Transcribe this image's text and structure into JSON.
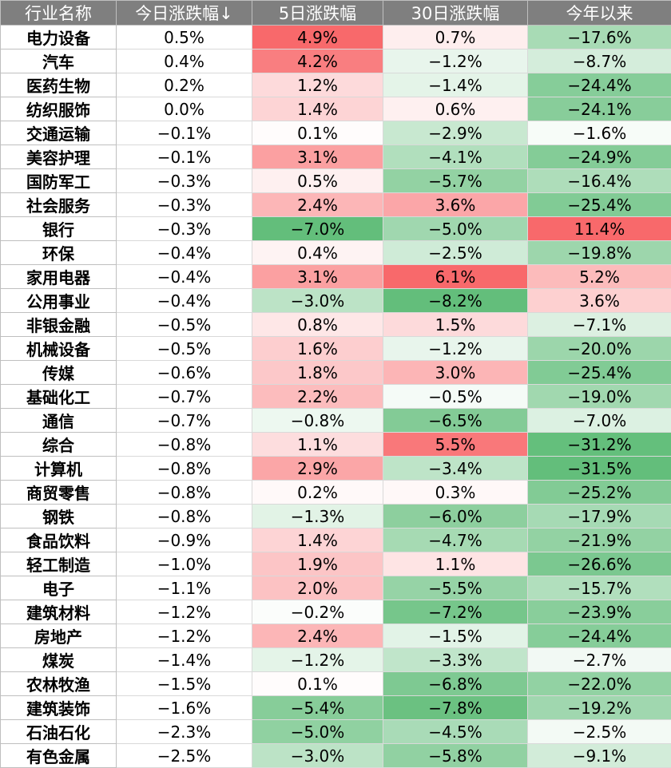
{
  "chart_data": {
    "type": "table",
    "columns": [
      "行业名称",
      "今日涨跌幅↓",
      "5日涨跌幅",
      "30日涨跌幅",
      "今年以来"
    ],
    "rows": [
      [
        "电力设备",
        "0.5%",
        "4.9%",
        "0.7%",
        "−17.6%"
      ],
      [
        "汽车",
        "0.4%",
        "4.2%",
        "−1.2%",
        "−8.7%"
      ],
      [
        "医药生物",
        "0.2%",
        "1.2%",
        "−1.4%",
        "−24.4%"
      ],
      [
        "纺织服饰",
        "0.0%",
        "1.4%",
        "0.6%",
        "−24.1%"
      ],
      [
        "交通运输",
        "−0.1%",
        "0.1%",
        "−2.9%",
        "−1.6%"
      ],
      [
        "美容护理",
        "−0.1%",
        "3.1%",
        "−4.1%",
        "−24.9%"
      ],
      [
        "国防军工",
        "−0.3%",
        "0.5%",
        "−5.7%",
        "−16.4%"
      ],
      [
        "社会服务",
        "−0.3%",
        "2.4%",
        "3.6%",
        "−25.4%"
      ],
      [
        "银行",
        "−0.3%",
        "−7.0%",
        "−5.0%",
        "11.4%"
      ],
      [
        "环保",
        "−0.4%",
        "0.4%",
        "−2.5%",
        "−19.8%"
      ],
      [
        "家用电器",
        "−0.4%",
        "3.1%",
        "6.1%",
        "5.2%"
      ],
      [
        "公用事业",
        "−0.4%",
        "−3.0%",
        "−8.2%",
        "3.6%"
      ],
      [
        "非银金融",
        "−0.5%",
        "0.8%",
        "1.5%",
        "−7.1%"
      ],
      [
        "机械设备",
        "−0.5%",
        "1.6%",
        "−1.2%",
        "−20.0%"
      ],
      [
        "传媒",
        "−0.6%",
        "1.8%",
        "3.0%",
        "−25.4%"
      ],
      [
        "基础化工",
        "−0.7%",
        "2.2%",
        "−0.5%",
        "−19.0%"
      ],
      [
        "通信",
        "−0.7%",
        "−0.8%",
        "−6.5%",
        "−7.0%"
      ],
      [
        "综合",
        "−0.8%",
        "1.1%",
        "5.5%",
        "−31.2%"
      ],
      [
        "计算机",
        "−0.8%",
        "2.9%",
        "−3.4%",
        "−31.5%"
      ],
      [
        "商贸零售",
        "−0.8%",
        "0.2%",
        "0.3%",
        "−25.2%"
      ],
      [
        "钢铁",
        "−0.8%",
        "−1.3%",
        "−6.0%",
        "−17.9%"
      ],
      [
        "食品饮料",
        "−0.9%",
        "1.4%",
        "−4.7%",
        "−21.9%"
      ],
      [
        "轻工制造",
        "−1.0%",
        "1.9%",
        "1.1%",
        "−26.6%"
      ],
      [
        "电子",
        "−1.1%",
        "2.0%",
        "−5.5%",
        "−15.7%"
      ],
      [
        "建筑材料",
        "−1.2%",
        "−0.2%",
        "−7.2%",
        "−23.9%"
      ],
      [
        "房地产",
        "−1.2%",
        "2.4%",
        "−1.5%",
        "−24.4%"
      ],
      [
        "煤炭",
        "−1.4%",
        "−1.2%",
        "−3.3%",
        "−2.7%"
      ],
      [
        "农林牧渔",
        "−1.5%",
        "0.1%",
        "−6.8%",
        "−22.0%"
      ],
      [
        "建筑装饰",
        "−1.6%",
        "−5.4%",
        "−7.8%",
        "−19.2%"
      ],
      [
        "石油石化",
        "−2.3%",
        "−5.0%",
        "−4.5%",
        "−2.5%"
      ],
      [
        "有色金属",
        "−2.5%",
        "−3.0%",
        "−5.8%",
        "−9.1%"
      ]
    ]
  },
  "colors": {
    "header_bg": "#7f7f7f",
    "header_text": "#ffffff",
    "positive_max": "#f8696b",
    "negative_max": "#63be7b",
    "neutral": "#ffffff"
  }
}
